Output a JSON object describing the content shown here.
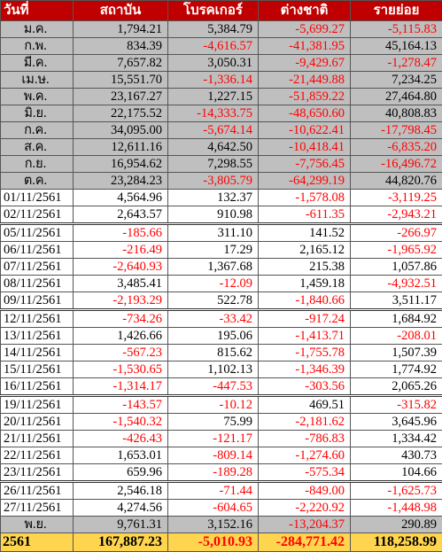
{
  "headers": [
    "วันที่",
    "สถาบัน",
    "โบรคเกอร์",
    "ต่างชาติ",
    "รายย่อย"
  ],
  "monthly": [
    {
      "label": "ม.ค.",
      "values": [
        "1,794.21",
        "5,384.79",
        "-5,699.27",
        "-5,115.83"
      ]
    },
    {
      "label": "ก.พ.",
      "values": [
        "834.39",
        "-4,616.57",
        "-41,381.95",
        "45,164.13"
      ]
    },
    {
      "label": "มี.ค.",
      "values": [
        "7,657.82",
        "3,050.31",
        "-9,429.67",
        "-1,278.47"
      ]
    },
    {
      "label": "เม.ษ.",
      "values": [
        "15,551.70",
        "-1,336.14",
        "-21,449.88",
        "7,234.25"
      ]
    },
    {
      "label": "พ.ค.",
      "values": [
        "23,167.27",
        "1,227.15",
        "-51,859.22",
        "27,464.80"
      ]
    },
    {
      "label": "มิ.ย.",
      "values": [
        "22,175.52",
        "-14,333.75",
        "-48,650.60",
        "40,808.83"
      ]
    },
    {
      "label": "ก.ค.",
      "values": [
        "34,095.00",
        "-5,674.14",
        "-10,622.41",
        "-17,798.45"
      ]
    },
    {
      "label": "ส.ค.",
      "values": [
        "12,611.16",
        "4,642.50",
        "-10,418.41",
        "-6,835.20"
      ]
    },
    {
      "label": "ก.ย.",
      "values": [
        "16,954.62",
        "7,298.55",
        "-7,756.45",
        "-16,496.72"
      ]
    },
    {
      "label": "ต.ค.",
      "values": [
        "23,284.23",
        "-3,805.79",
        "-64,299.19",
        "44,820.76"
      ]
    }
  ],
  "daily": [
    {
      "label": "01/11/2561",
      "values": [
        "4,564.96",
        "132.37",
        "-1,578.08",
        "-3,119.25"
      ]
    },
    {
      "label": "02/11/2561",
      "values": [
        "2,643.57",
        "910.98",
        "-611.35",
        "-2,943.21"
      ]
    },
    {
      "label": "05/11/2561",
      "values": [
        "-185.66",
        "311.10",
        "141.52",
        "-266.97"
      ]
    },
    {
      "label": "06/11/2561",
      "values": [
        "-216.49",
        "17.29",
        "2,165.12",
        "-1,965.92"
      ]
    },
    {
      "label": "07/11/2561",
      "values": [
        "-2,640.93",
        "1,367.68",
        "215.38",
        "1,057.86"
      ]
    },
    {
      "label": "08/11/2561",
      "values": [
        "3,485.41",
        "-12.09",
        "1,459.18",
        "-4,932.51"
      ]
    },
    {
      "label": "09/11/2561",
      "values": [
        "-2,193.29",
        "522.78",
        "-1,840.66",
        "3,511.17"
      ]
    },
    {
      "label": "12/11/2561",
      "values": [
        "-734.26",
        "-33.42",
        "-917.24",
        "1,684.92"
      ]
    },
    {
      "label": "13/11/2561",
      "values": [
        "1,426.66",
        "195.06",
        "-1,413.71",
        "-208.01"
      ]
    },
    {
      "label": "14/11/2561",
      "values": [
        "-567.23",
        "815.62",
        "-1,755.78",
        "1,507.39"
      ]
    },
    {
      "label": "15/11/2561",
      "values": [
        "-1,530.65",
        "1,102.13",
        "-1,346.39",
        "1,774.92"
      ]
    },
    {
      "label": "16/11/2561",
      "values": [
        "-1,314.17",
        "-447.53",
        "-303.56",
        "2,065.26"
      ]
    },
    {
      "label": "19/11/2561",
      "values": [
        "-143.57",
        "-10.12",
        "469.51",
        "-315.82"
      ]
    },
    {
      "label": "20/11/2561",
      "values": [
        "-1,540.32",
        "75.99",
        "-2,181.62",
        "3,645.96"
      ]
    },
    {
      "label": "21/11/2561",
      "values": [
        "-426.43",
        "-121.17",
        "-786.83",
        "1,334.42"
      ]
    },
    {
      "label": "22/11/2561",
      "values": [
        "1,653.01",
        "-809.14",
        "-1,274.60",
        "430.73"
      ]
    },
    {
      "label": "23/11/2561",
      "values": [
        "659.96",
        "-189.28",
        "-575.34",
        "104.66"
      ]
    },
    {
      "label": "26/11/2561",
      "values": [
        "2,546.18",
        "-71.44",
        "-849.00",
        "-1,625.73"
      ]
    },
    {
      "label": "27/11/2561",
      "values": [
        "4,274.56",
        "-604.65",
        "-2,220.92",
        "-1,448.98"
      ]
    }
  ],
  "week_break_before": [
    2,
    7,
    12,
    17
  ],
  "month_summary": {
    "label": "พ.ย.",
    "values": [
      "9,761.31",
      "3,152.16",
      "-13,204.37",
      "290.89"
    ]
  },
  "year_total": {
    "label": "2561",
    "values": [
      "167,887.23",
      "-5,010.93",
      "-284,771.42",
      "118,258.99"
    ]
  },
  "colors": {
    "header_bg": "#c00000",
    "month_row_bg": "#bfbfbf",
    "total_row_bg": "#ffd54f",
    "negative_text": "#ff0000"
  }
}
